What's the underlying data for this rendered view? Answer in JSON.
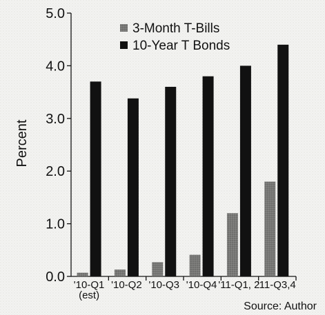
{
  "chart_data": {
    "type": "bar",
    "categories": [
      "'10-Q1",
      "'10-Q2",
      "'10-Q3",
      "'10-Q4",
      "'11-Q1, 2",
      "'11-Q3,4"
    ],
    "category_sublabels": [
      "(est)",
      "",
      "",
      "",
      "",
      ""
    ],
    "series": [
      {
        "name": "3-Month T-Bills",
        "values": [
          0.07,
          0.13,
          0.27,
          0.41,
          1.2,
          1.8
        ],
        "color": "#777777"
      },
      {
        "name": "10-Year T Bonds",
        "values": [
          3.7,
          3.38,
          3.6,
          3.8,
          4.0,
          4.4
        ],
        "color": "#111111"
      }
    ],
    "title": "",
    "xlabel": "",
    "ylabel": "Percent",
    "ylim": [
      0,
      5
    ],
    "y_ticks": [
      0,
      1,
      2,
      3,
      4,
      5
    ],
    "y_tick_labels": [
      "0.0",
      "1.0",
      "2.0",
      "3.0",
      "4.0",
      "5.0"
    ],
    "legend_position": "top-center",
    "grid": false,
    "source": "Source: Author"
  }
}
